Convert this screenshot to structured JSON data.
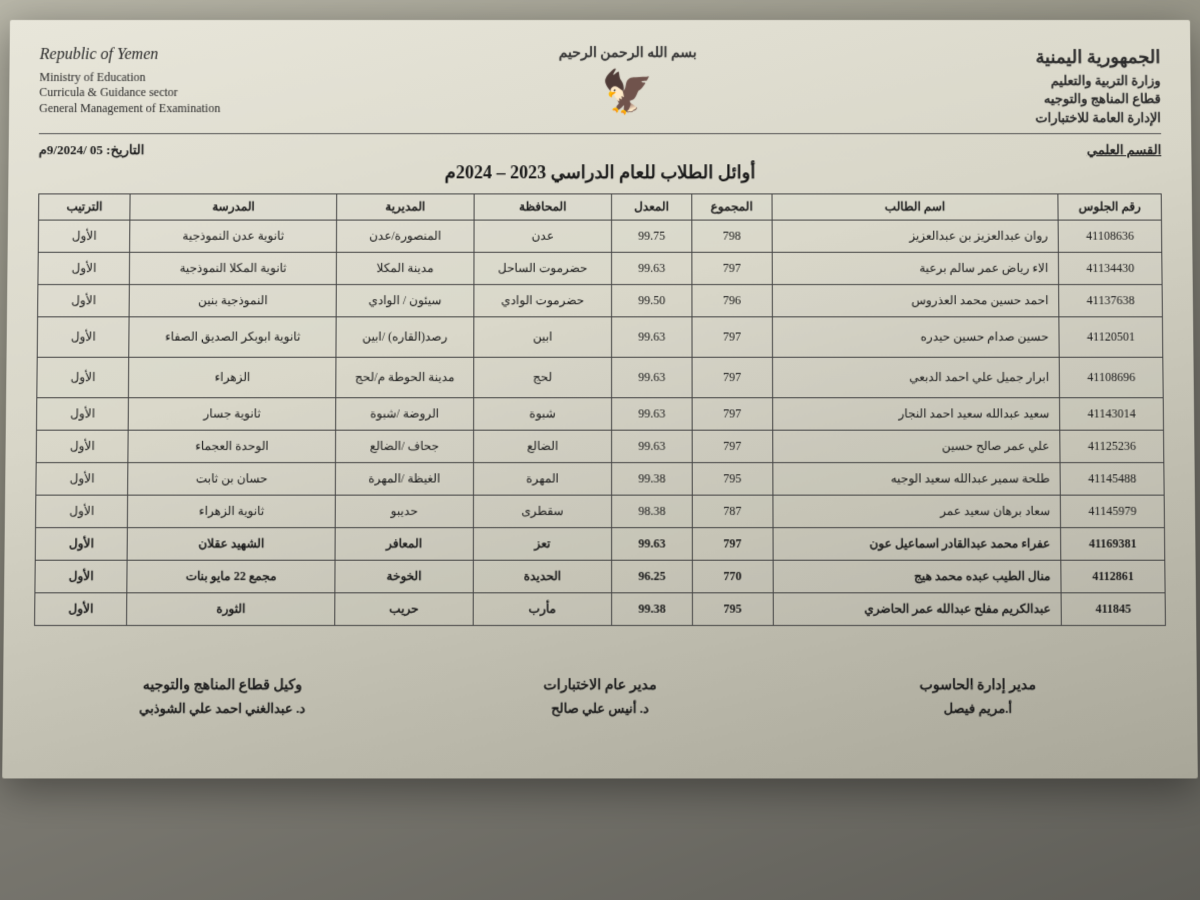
{
  "letterhead": {
    "en": {
      "country": "Republic of Yemen",
      "ministry": "Ministry of Education",
      "sector": "Curricula & Guidance sector",
      "dept": "General Management of Examination"
    },
    "ar": {
      "country": "الجمهورية اليمنية",
      "ministry": "وزارة التربية والتعليم",
      "sector": "قطاع المناهج والتوجيه",
      "dept": "الإدارة العامة للاختبارات"
    },
    "bismillah": "بسم الله الرحمن الرحيم"
  },
  "meta": {
    "date_label": "التاريخ:",
    "date_value": "05 /9/2024م",
    "section_label": "القسم العلمي"
  },
  "title": "أوائل الطلاب للعام الدراسي 2023 – 2024م",
  "columns": {
    "seat": "رقم الجلوس",
    "name": "اسم الطالب",
    "total": "المجموع",
    "avg": "المعدل",
    "gov": "المحافظة",
    "dist": "المديرية",
    "school": "المدرسة",
    "rank": "الترتيب"
  },
  "rows": [
    {
      "seat": "41108636",
      "name": "روان عبدالعزيز بن عبدالعزيز",
      "total": "798",
      "avg": "99.75",
      "gov": "عدن",
      "dist": "المنصورة/عدن",
      "school": "ثانوية عدن النموذجية",
      "rank": "الأول"
    },
    {
      "seat": "41134430",
      "name": "الاء رياض عمر سالم برعية",
      "total": "797",
      "avg": "99.63",
      "gov": "حضرموت الساحل",
      "dist": "مدينة المكلا",
      "school": "ثانوية المكلا النموذجية",
      "rank": "الأول"
    },
    {
      "seat": "41137638",
      "name": "احمد حسين محمد العذروس",
      "total": "796",
      "avg": "99.50",
      "gov": "حضرموت الوادي",
      "dist": "سيئون / الوادي",
      "school": "النموذجية بنين",
      "rank": "الأول"
    },
    {
      "seat": "41120501",
      "name": "حسين صدام حسين حيدره",
      "total": "797",
      "avg": "99.63",
      "gov": "ابين",
      "dist": "رصد(القاره) /ابين",
      "school": "ثانوية ابوبكر الصديق الصفاء",
      "rank": "الأول",
      "tall": true
    },
    {
      "seat": "41108696",
      "name": "ابرار جميل علي احمد الدبعي",
      "total": "797",
      "avg": "99.63",
      "gov": "لحج",
      "dist": "مدينة الحوطة م/لحج",
      "school": "الزهراء",
      "rank": "الأول",
      "tall": true
    },
    {
      "seat": "41143014",
      "name": "سعيد عبدالله سعيد احمد النجار",
      "total": "797",
      "avg": "99.63",
      "gov": "شبوة",
      "dist": "الروضة /شبوة",
      "school": "ثانوية جسار",
      "rank": "الأول"
    },
    {
      "seat": "41125236",
      "name": "علي عمر صالح حسين",
      "total": "797",
      "avg": "99.63",
      "gov": "الضالع",
      "dist": "جحاف /الضالع",
      "school": "الوحدة العجماء",
      "rank": "الأول"
    },
    {
      "seat": "41145488",
      "name": "طلحة سمير عبدالله سعيد الوجيه",
      "total": "795",
      "avg": "99.38",
      "gov": "المهرة",
      "dist": "الغيظة /المهرة",
      "school": "حسان بن ثابت",
      "rank": "الأول"
    },
    {
      "seat": "41145979",
      "name": "سعاد برهان سعيد عمر",
      "total": "787",
      "avg": "98.38",
      "gov": "سقطرى",
      "dist": "حديبو",
      "school": "ثانوية الزهراء",
      "rank": "الأول"
    },
    {
      "seat": "41169381",
      "name": "عفراء محمد عبدالقادر اسماعيل عون",
      "total": "797",
      "avg": "99.63",
      "gov": "تعز",
      "dist": "المعافر",
      "school": "الشهيد عقلان",
      "rank": "الأول",
      "bold": true
    },
    {
      "seat": "4112861",
      "name": "منال الطيب عبده محمد هيج",
      "total": "770",
      "avg": "96.25",
      "gov": "الحديدة",
      "dist": "الخوخة",
      "school": "مجمع 22 مايو بنات",
      "rank": "الأول",
      "bold": true
    },
    {
      "seat": "411845",
      "name": "عبدالكريم مفلح عبدالله عمر الحاضري",
      "total": "795",
      "avg": "99.38",
      "gov": "مأرب",
      "dist": "حريب",
      "school": "الثورة",
      "rank": "الأول",
      "bold": true
    }
  ],
  "signatures": {
    "s1": {
      "title": "مدير إدارة الحاسوب",
      "name": "أ.مريم فيصل"
    },
    "s2": {
      "title": "مدير عام الاختبارات",
      "name": "د. أنيس علي صالح"
    },
    "s3": {
      "title": "وكيل قطاع المناهج والتوجيه",
      "name": "د. عبدالغني احمد علي الشوذبي"
    }
  },
  "colors": {
    "border": "#444444",
    "text": "#1a1a1a",
    "paper_top": "#e8e6da",
    "paper_bottom": "#a8a698"
  }
}
